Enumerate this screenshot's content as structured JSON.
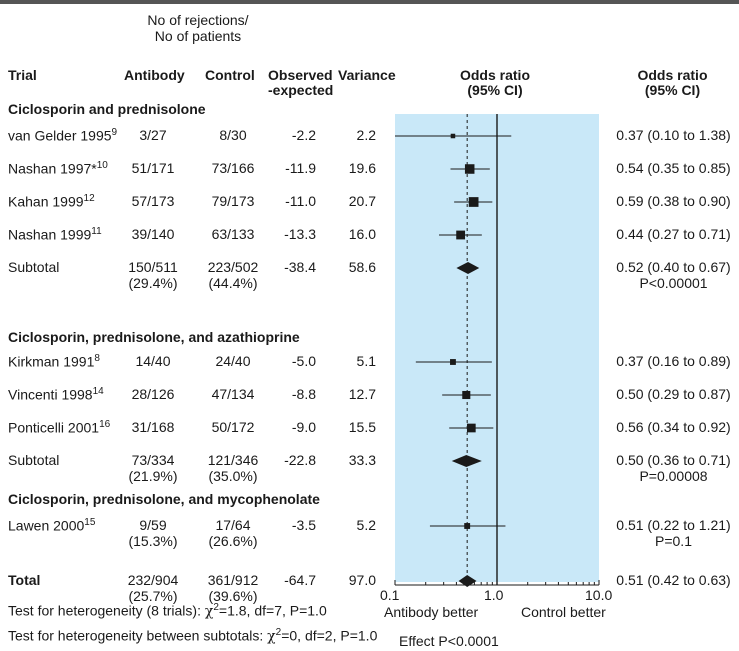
{
  "header": {
    "group_line1": "No of rejections/",
    "group_line2": "No of patients",
    "trial": "Trial",
    "antibody": "Antibody",
    "control": "Control",
    "oe1": "Observed",
    "oe2": "-expected",
    "variance": "Variance",
    "or_plot1": "Odds ratio",
    "or_plot2": "(95% CI)",
    "or_text1": "Odds ratio",
    "or_text2": "(95% CI)"
  },
  "sections": [
    {
      "title": "Ciclosporin and prednisolone",
      "rows": [
        {
          "name": "van Gelder 1995",
          "ref": "9",
          "antibody": "3/27",
          "control": "8/30",
          "oe": "-2.2",
          "variance": "2.2",
          "or_text": "0.37 (0.10 to 1.38)"
        },
        {
          "name": "Nashan 1997*",
          "ref": "10",
          "antibody": "51/171",
          "control": "73/166",
          "oe": "-11.9",
          "variance": "19.6",
          "or_text": "0.54 (0.35 to 0.85)"
        },
        {
          "name": "Kahan 1999",
          "ref": "12",
          "antibody": "57/173",
          "control": "79/173",
          "oe": "-11.0",
          "variance": "20.7",
          "or_text": "0.59 (0.38 to 0.90)"
        },
        {
          "name": "Nashan 1999",
          "ref": "11",
          "antibody": "39/140",
          "control": "63/133",
          "oe": "-13.3",
          "variance": "16.0",
          "or_text": "0.44 (0.27 to 0.71)"
        }
      ],
      "subtotal": {
        "label": "Subtotal",
        "antibody": "150/511",
        "antibody_pct": "(29.4%)",
        "control": "223/502",
        "control_pct": "(44.4%)",
        "oe": "-38.4",
        "variance": "58.6",
        "or_text": "0.52 (0.40 to 0.67)",
        "p": "P<0.00001"
      }
    },
    {
      "title": "Ciclosporin, prednisolone, and azathioprine",
      "rows": [
        {
          "name": "Kirkman 1991",
          "ref": "8",
          "antibody": "14/40",
          "control": "24/40",
          "oe": "-5.0",
          "variance": "5.1",
          "or_text": "0.37 (0.16 to 0.89)"
        },
        {
          "name": "Vincenti 1998",
          "ref": "14",
          "antibody": "28/126",
          "control": "47/134",
          "oe": "-8.8",
          "variance": "12.7",
          "or_text": "0.50 (0.29 to 0.87)"
        },
        {
          "name": "Ponticelli 2001",
          "ref": "16",
          "antibody": "31/168",
          "control": "50/172",
          "oe": "-9.0",
          "variance": "15.5",
          "or_text": "0.56 (0.34 to 0.92)"
        }
      ],
      "subtotal": {
        "label": "Subtotal",
        "antibody": "73/334",
        "antibody_pct": "(21.9%)",
        "control": "121/346",
        "control_pct": "(35.0%)",
        "oe": "-22.8",
        "variance": "33.3",
        "or_text": "0.50 (0.36 to 0.71)",
        "p": "P=0.00008"
      }
    },
    {
      "title": "Ciclosporin, prednisolone, and mycophenolate",
      "rows": [
        {
          "name": "Lawen 2000",
          "ref": "15",
          "antibody": "9/59",
          "antibody_pct": "(15.3%)",
          "control": "17/64",
          "control_pct": "(26.6%)",
          "oe": "-3.5",
          "variance": "5.2",
          "or_text": "0.51 (0.22 to 1.21)",
          "p": "P=0.1"
        }
      ]
    }
  ],
  "total": {
    "label": "Total",
    "antibody": "232/904",
    "antibody_pct": "(25.7%)",
    "control": "361/912",
    "control_pct": "(39.6%)",
    "oe": "-64.7",
    "variance": "97.0",
    "or_text": "0.51 (0.42 to 0.63)"
  },
  "footer": {
    "het1_pre": "Test for heterogeneity (8 trials): ",
    "het1_chi": "χ",
    "het1_sup": "2",
    "het1_post": "=1.8, df=7, P=1.0",
    "het2_pre": "Test for heterogeneity between subtotals: ",
    "het2_chi": "χ",
    "het2_sup": "2",
    "het2_post": "=0, df=2, P=1.0",
    "antibody_better": "Antibody better",
    "control_better": "Control better",
    "effect": "Effect P<0.0001"
  },
  "chart_data": {
    "type": "forest",
    "xscale": "log",
    "xlim": [
      0.1,
      10.0
    ],
    "xticks": [
      0.1,
      1.0,
      10.0
    ],
    "xtick_labels": [
      "0.1",
      "1.0",
      "10.0"
    ],
    "null_line": 1.0,
    "overall_line": 0.51,
    "background_color": "#c9e8f8",
    "marker_color": "#1a1a1a",
    "studies": [
      {
        "or": 0.37,
        "lo": 0.1,
        "hi": 1.38,
        "weight": 2.2
      },
      {
        "or": 0.54,
        "lo": 0.35,
        "hi": 0.85,
        "weight": 19.6
      },
      {
        "or": 0.59,
        "lo": 0.38,
        "hi": 0.9,
        "weight": 20.7
      },
      {
        "or": 0.44,
        "lo": 0.27,
        "hi": 0.71,
        "weight": 16.0
      },
      {
        "or": 0.52,
        "lo": 0.4,
        "hi": 0.67,
        "subtotal": true
      },
      {
        "or": 0.37,
        "lo": 0.16,
        "hi": 0.89,
        "weight": 5.1
      },
      {
        "or": 0.5,
        "lo": 0.29,
        "hi": 0.87,
        "weight": 12.7
      },
      {
        "or": 0.56,
        "lo": 0.34,
        "hi": 0.92,
        "weight": 15.5
      },
      {
        "or": 0.5,
        "lo": 0.36,
        "hi": 0.71,
        "subtotal": true
      },
      {
        "or": 0.51,
        "lo": 0.22,
        "hi": 1.21,
        "weight": 5.2
      },
      {
        "or": 0.51,
        "lo": 0.42,
        "hi": 0.63,
        "subtotal": true
      }
    ]
  }
}
